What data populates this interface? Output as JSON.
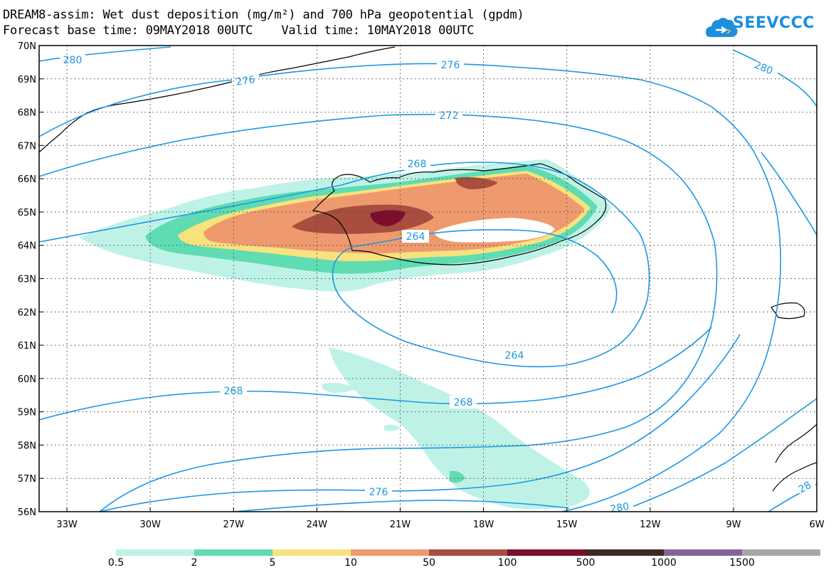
{
  "title": {
    "line1": "DREAM8-assim: Wet dust deposition (mg/m²) and 700 hPa geopotential (gpdm)",
    "line2": "Forecast base time: 09MAY2018 00UTC    Valid time: 10MAY2018 00UTC"
  },
  "logo": {
    "text": "SEEVCCC"
  },
  "axes": {
    "lat_labels": [
      "70N",
      "69N",
      "68N",
      "67N",
      "66N",
      "65N",
      "64N",
      "63N",
      "62N",
      "61N",
      "60N",
      "59N",
      "58N",
      "57N",
      "56N"
    ],
    "lon_labels": [
      "33W",
      "30W",
      "27W",
      "24W",
      "21W",
      "18W",
      "15W",
      "12W",
      "9W",
      "6W"
    ],
    "lat_range": [
      56,
      70
    ],
    "lon_range": [
      -34,
      -6
    ]
  },
  "contours": {
    "color": "#1d97e6",
    "labels": [
      "280",
      "276",
      "280",
      "276",
      "272",
      "268",
      "264",
      "264",
      "268",
      "268",
      "276",
      "280",
      "28"
    ]
  },
  "legend": {
    "thresholds": [
      "0.5",
      "2",
      "5",
      "10",
      "50",
      "100",
      "500",
      "1000",
      "1500"
    ],
    "colors": [
      "#bff2e6",
      "#5fdcb2",
      "#f7e27e",
      "#ef9a6e",
      "#a84e3e",
      "#7a0e2c",
      "#3b2a23",
      "#86649a",
      "#a7a7a7"
    ]
  }
}
